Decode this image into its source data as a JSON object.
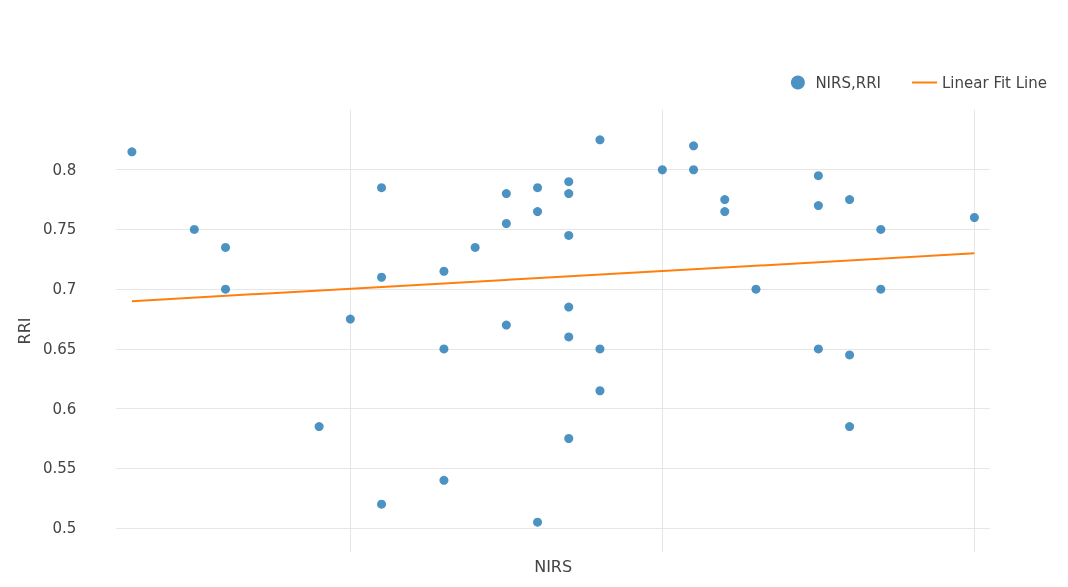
{
  "chart_data": {
    "type": "scatter",
    "xlabel": "NIRS",
    "ylabel": "RRI",
    "categories": [
      null,
      null,
      null,
      null,
      null,
      null,
      null,
      null,
      null,
      null,
      null,
      null,
      null,
      null,
      null,
      null,
      null,
      null,
      null,
      null,
      null,
      null,
      null,
      null,
      null,
      null,
      null,
      null
    ],
    "ylim": [
      0.48,
      0.85
    ],
    "yticks": [
      0.5,
      0.55,
      0.6,
      0.65,
      0.7,
      0.75,
      0.8
    ],
    "grid": true,
    "legend": "top right",
    "tick_labels": "y",
    "marker": "circle",
    "series": [
      {
        "name": "NIRS,RRI",
        "color": "#1f77b4",
        "values": [
          0.815,
          null,
          0.75,
          0.735,
          null,
          null,
          0.585,
          0.675,
          0.785,
          null,
          0.715,
          0.735,
          0.78,
          0.785,
          0.79,
          0.825,
          null,
          0.8,
          0.82,
          0.775,
          0.7,
          null,
          0.795,
          0.775,
          0.75,
          null,
          null,
          0.76
        ]
      },
      {
        "color": "#1f77b4",
        "values": [
          null,
          null,
          null,
          0.7,
          null,
          null,
          null,
          null,
          0.71,
          null,
          0.65,
          null,
          0.755,
          0.765,
          0.78,
          0.65,
          null,
          null,
          0.8,
          0.765,
          null,
          null,
          0.77,
          0.645,
          0.7,
          null,
          null,
          null
        ]
      },
      {
        "color": "#1f77b4",
        "values": [
          null,
          null,
          null,
          null,
          null,
          null,
          null,
          null,
          0.52,
          null,
          0.54,
          null,
          0.67,
          0.505,
          0.745,
          0.615,
          null,
          null,
          null,
          null,
          null,
          null,
          0.65,
          0.585,
          null,
          null,
          null,
          null
        ]
      },
      {
        "color": "#1f77b4",
        "values": [
          null,
          null,
          null,
          null,
          null,
          null,
          null,
          null,
          null,
          null,
          null,
          null,
          null,
          null,
          0.685,
          null,
          null,
          null,
          null,
          null,
          null,
          null,
          null,
          null,
          null,
          null,
          null,
          null
        ]
      },
      {
        "color": "#1f77b4",
        "values": [
          null,
          null,
          null,
          null,
          null,
          null,
          null,
          null,
          null,
          null,
          null,
          null,
          null,
          null,
          0.66,
          null,
          null,
          null,
          null,
          null,
          null,
          null,
          null,
          null,
          null,
          null,
          null,
          null
        ]
      },
      {
        "color": "#1f77b4",
        "values": [
          null,
          null,
          null,
          null,
          null,
          null,
          null,
          null,
          null,
          null,
          null,
          null,
          null,
          null,
          0.575,
          null,
          null,
          null,
          null,
          null,
          null,
          null,
          null,
          null,
          null,
          null,
          null,
          null
        ]
      },
      {
        "name": "Linear Fit Line",
        "type": "line",
        "marker": "none",
        "color": "#ff7f0e",
        "values": [
          0.69,
          null,
          null,
          null,
          null,
          null,
          null,
          null,
          null,
          null,
          null,
          null,
          null,
          null,
          null,
          null,
          null,
          null,
          null,
          null,
          null,
          null,
          null,
          null,
          null,
          null,
          null,
          0.73
        ]
      }
    ]
  }
}
